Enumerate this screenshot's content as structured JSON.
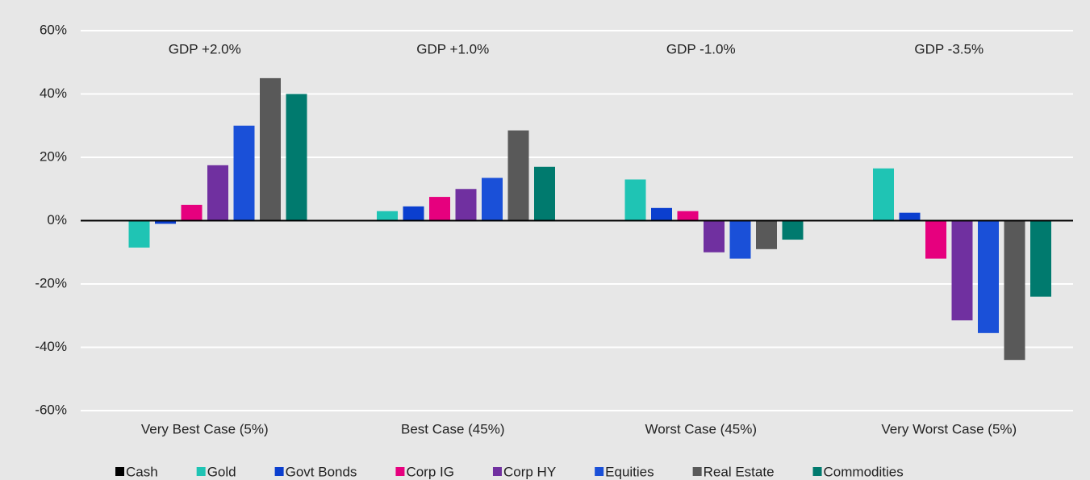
{
  "chart_data": {
    "type": "bar",
    "categories": [
      "Very Best Case (5%)",
      "Best Case (45%)",
      "Worst Case (45%)",
      "Very Worst Case (5%)"
    ],
    "annotations": [
      "GDP +2.0%",
      "GDP +1.0%",
      "GDP -1.0%",
      "GDP -3.5%"
    ],
    "series": [
      {
        "name": "Cash",
        "color": "#000000",
        "values": [
          0,
          0,
          0,
          0
        ]
      },
      {
        "name": "Gold",
        "color": "#1fc4b4",
        "values": [
          -8.5,
          3,
          13,
          16.5
        ]
      },
      {
        "name": "Govt Bonds",
        "color": "#0b3fcf",
        "values": [
          -1,
          4.5,
          4,
          2.5
        ]
      },
      {
        "name": "Corp IG",
        "color": "#e6007e",
        "values": [
          5,
          7.5,
          3,
          -12
        ]
      },
      {
        "name": "Corp HY",
        "color": "#7030a0",
        "values": [
          17.5,
          10,
          -10,
          -31.5
        ]
      },
      {
        "name": "Equities",
        "color": "#1a50d8",
        "values": [
          30,
          13.5,
          -12,
          -35.5
        ]
      },
      {
        "name": "Real Estate",
        "color": "#595959",
        "values": [
          45,
          28.5,
          -9,
          -44
        ]
      },
      {
        "name": "Commodities",
        "color": "#007a6e",
        "values": [
          40,
          17,
          -6,
          -24
        ]
      }
    ],
    "ylim": [
      -60,
      60
    ],
    "yticks": [
      {
        "value": -60,
        "label": "-60%"
      },
      {
        "value": -40,
        "label": "-40%"
      },
      {
        "value": -20,
        "label": "-20%"
      },
      {
        "value": 0,
        "label": "0%"
      },
      {
        "value": 20,
        "label": "20%"
      },
      {
        "value": 40,
        "label": "40%"
      },
      {
        "value": 60,
        "label": "60%"
      }
    ],
    "grid": true,
    "legend": "bottom"
  }
}
